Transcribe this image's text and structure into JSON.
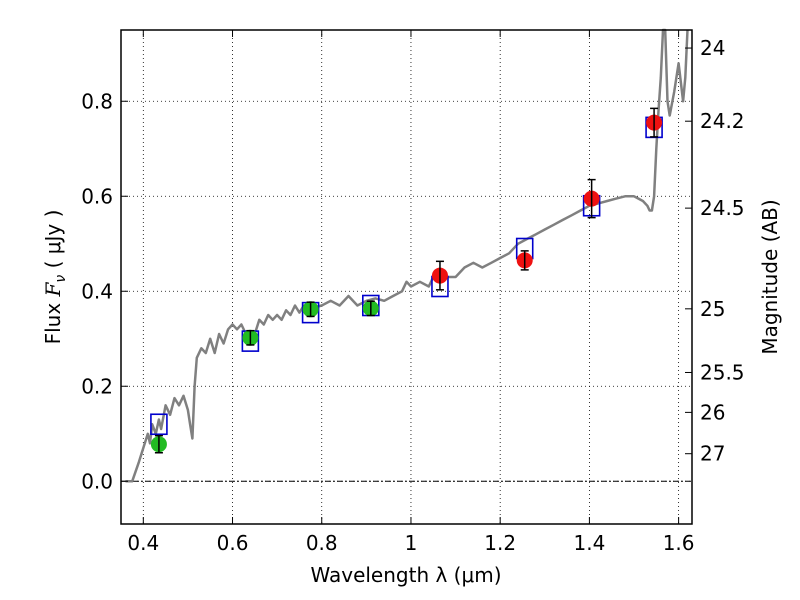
{
  "chart_data": {
    "type": "scatter",
    "xlabel": "Wavelength  λ (μm)",
    "ylabel_parts": [
      "Flux  ",
      "F",
      "ν",
      "  ( μJy )"
    ],
    "y2label": "Magnitude (AB)",
    "xlim": [
      0.35,
      1.63
    ],
    "ylim": [
      -0.09,
      0.95
    ],
    "grid": true,
    "x_ticks": [
      {
        "value": 0.4,
        "label": "0.4"
      },
      {
        "value": 0.6,
        "label": "0.6"
      },
      {
        "value": 0.8,
        "label": "0.8"
      },
      {
        "value": 1.0,
        "label": "1"
      },
      {
        "value": 1.2,
        "label": "1.2"
      },
      {
        "value": 1.4,
        "label": "1.4"
      },
      {
        "value": 1.6,
        "label": "1.6"
      }
    ],
    "y_ticks": [
      {
        "value": 0.0,
        "label": "0.0"
      },
      {
        "value": 0.2,
        "label": "0.2"
      },
      {
        "value": 0.4,
        "label": "0.4"
      },
      {
        "value": 0.6,
        "label": "0.6"
      },
      {
        "value": 0.8,
        "label": "0.8"
      }
    ],
    "magnitude_ticks": [
      {
        "flux": 0.912,
        "label": "24"
      },
      {
        "flux": 0.758,
        "label": "24.2"
      },
      {
        "flux": 0.575,
        "label": "24.5"
      },
      {
        "flux": 0.363,
        "label": "25"
      },
      {
        "flux": 0.229,
        "label": "25.5"
      },
      {
        "flux": 0.145,
        "label": "26"
      },
      {
        "flux": 0.058,
        "label": "27"
      }
    ],
    "colors": {
      "model": "#808080",
      "box": "#0000cc",
      "optical": "#22bb22",
      "infrared": "#ee1111",
      "errorbar": "#000000"
    },
    "series": [
      {
        "name": "model_spectrum",
        "style": "line",
        "points": [
          [
            0.36,
            0.0
          ],
          [
            0.375,
            0.0
          ],
          [
            0.39,
            0.04
          ],
          [
            0.4,
            0.07
          ],
          [
            0.41,
            0.1
          ],
          [
            0.415,
            0.08
          ],
          [
            0.42,
            0.12
          ],
          [
            0.428,
            0.1
          ],
          [
            0.435,
            0.13
          ],
          [
            0.44,
            0.11
          ],
          [
            0.45,
            0.16
          ],
          [
            0.46,
            0.14
          ],
          [
            0.47,
            0.175
          ],
          [
            0.48,
            0.16
          ],
          [
            0.49,
            0.18
          ],
          [
            0.5,
            0.15
          ],
          [
            0.505,
            0.12
          ],
          [
            0.51,
            0.09
          ],
          [
            0.515,
            0.2
          ],
          [
            0.52,
            0.26
          ],
          [
            0.53,
            0.28
          ],
          [
            0.54,
            0.27
          ],
          [
            0.55,
            0.3
          ],
          [
            0.56,
            0.27
          ],
          [
            0.57,
            0.31
          ],
          [
            0.58,
            0.29
          ],
          [
            0.59,
            0.32
          ],
          [
            0.6,
            0.33
          ],
          [
            0.61,
            0.32
          ],
          [
            0.62,
            0.33
          ],
          [
            0.63,
            0.31
          ],
          [
            0.64,
            0.3
          ],
          [
            0.65,
            0.31
          ],
          [
            0.66,
            0.34
          ],
          [
            0.67,
            0.33
          ],
          [
            0.68,
            0.35
          ],
          [
            0.69,
            0.34
          ],
          [
            0.7,
            0.35
          ],
          [
            0.71,
            0.34
          ],
          [
            0.72,
            0.36
          ],
          [
            0.73,
            0.35
          ],
          [
            0.74,
            0.37
          ],
          [
            0.75,
            0.355
          ],
          [
            0.76,
            0.37
          ],
          [
            0.78,
            0.365
          ],
          [
            0.8,
            0.37
          ],
          [
            0.82,
            0.38
          ],
          [
            0.84,
            0.37
          ],
          [
            0.86,
            0.39
          ],
          [
            0.88,
            0.37
          ],
          [
            0.9,
            0.38
          ],
          [
            0.92,
            0.385
          ],
          [
            0.94,
            0.38
          ],
          [
            0.96,
            0.39
          ],
          [
            0.98,
            0.4
          ],
          [
            0.99,
            0.42
          ],
          [
            1.0,
            0.41
          ],
          [
            1.02,
            0.42
          ],
          [
            1.04,
            0.41
          ],
          [
            1.05,
            0.43
          ],
          [
            1.06,
            0.42
          ],
          [
            1.08,
            0.43
          ],
          [
            1.1,
            0.43
          ],
          [
            1.12,
            0.45
          ],
          [
            1.14,
            0.46
          ],
          [
            1.16,
            0.45
          ],
          [
            1.18,
            0.46
          ],
          [
            1.2,
            0.47
          ],
          [
            1.22,
            0.48
          ],
          [
            1.24,
            0.5
          ],
          [
            1.26,
            0.51
          ],
          [
            1.28,
            0.52
          ],
          [
            1.3,
            0.53
          ],
          [
            1.32,
            0.54
          ],
          [
            1.34,
            0.55
          ],
          [
            1.36,
            0.56
          ],
          [
            1.38,
            0.57
          ],
          [
            1.4,
            0.58
          ],
          [
            1.42,
            0.585
          ],
          [
            1.44,
            0.59
          ],
          [
            1.46,
            0.595
          ],
          [
            1.48,
            0.6
          ],
          [
            1.5,
            0.6
          ],
          [
            1.52,
            0.59
          ],
          [
            1.53,
            0.58
          ],
          [
            1.535,
            0.57
          ],
          [
            1.54,
            0.57
          ],
          [
            1.545,
            0.6
          ],
          [
            1.55,
            0.7
          ],
          [
            1.555,
            0.78
          ],
          [
            1.56,
            0.85
          ],
          [
            1.565,
            0.95
          ],
          [
            1.57,
            0.95
          ],
          [
            1.575,
            0.8
          ],
          [
            1.58,
            0.77
          ],
          [
            1.59,
            0.82
          ],
          [
            1.6,
            0.88
          ],
          [
            1.61,
            0.8
          ],
          [
            1.615,
            0.85
          ],
          [
            1.62,
            0.95
          ]
        ]
      },
      {
        "name": "model_band_fluxes",
        "style": "open-square",
        "points": [
          [
            0.435,
            0.12
          ],
          [
            0.64,
            0.295
          ],
          [
            0.775,
            0.355
          ],
          [
            0.91,
            0.37
          ],
          [
            1.065,
            0.41
          ],
          [
            1.255,
            0.49
          ],
          [
            1.405,
            0.58
          ],
          [
            1.545,
            0.745
          ]
        ]
      },
      {
        "name": "optical_photometry",
        "style": "filled-circle",
        "points": [
          {
            "x": 0.435,
            "y": 0.078,
            "err": 0.018
          },
          {
            "x": 0.64,
            "y": 0.302,
            "err": 0.015
          },
          {
            "x": 0.775,
            "y": 0.362,
            "err": 0.015
          },
          {
            "x": 0.91,
            "y": 0.364,
            "err": 0.015
          }
        ]
      },
      {
        "name": "infrared_photometry",
        "style": "filled-circle",
        "points": [
          {
            "x": 1.065,
            "y": 0.433,
            "err": 0.03
          },
          {
            "x": 1.255,
            "y": 0.465,
            "err": 0.02
          },
          {
            "x": 1.405,
            "y": 0.595,
            "err": 0.04
          },
          {
            "x": 1.545,
            "y": 0.755,
            "err": 0.03
          }
        ]
      }
    ]
  }
}
